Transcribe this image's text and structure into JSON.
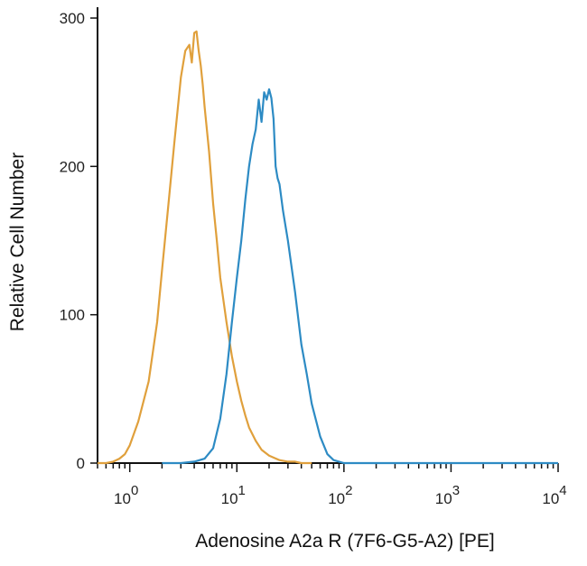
{
  "chart_data": {
    "type": "line",
    "title": "",
    "xlabel": "Adenosine A2a R (7F6-G5-A2) [PE]",
    "ylabel": "Relative Cell Number",
    "x_scale": "log",
    "xlim": [
      0.5,
      10000
    ],
    "ylim": [
      0,
      300
    ],
    "x_ticks": [
      {
        "value": 1,
        "base": "10",
        "exp": "0"
      },
      {
        "value": 10,
        "base": "10",
        "exp": "1"
      },
      {
        "value": 100,
        "base": "10",
        "exp": "2"
      },
      {
        "value": 1000,
        "base": "10",
        "exp": "3"
      },
      {
        "value": 10000,
        "base": "10",
        "exp": "4"
      }
    ],
    "y_ticks": [
      {
        "value": 0,
        "label": "0"
      },
      {
        "value": 100,
        "label": "100"
      },
      {
        "value": 200,
        "label": "200"
      },
      {
        "value": 300,
        "label": "300"
      }
    ],
    "grid": false,
    "legend": "none",
    "series": [
      {
        "color": "#e0a03c",
        "x": [
          0.5,
          0.6,
          0.7,
          0.8,
          0.9,
          1.0,
          1.2,
          1.5,
          1.8,
          2.0,
          2.3,
          2.6,
          3.0,
          3.3,
          3.6,
          3.8,
          4.0,
          4.2,
          4.4,
          4.6,
          4.8,
          5.0,
          5.5,
          6.0,
          6.5,
          7.0,
          8.0,
          9.0,
          10,
          11,
          12,
          13,
          15,
          17,
          20,
          25,
          30,
          35,
          40,
          50
        ],
        "y": [
          0,
          0,
          1,
          3,
          6,
          12,
          28,
          55,
          95,
          130,
          175,
          215,
          260,
          278,
          282,
          270,
          290,
          291,
          278,
          268,
          255,
          240,
          210,
          175,
          150,
          125,
          95,
          72,
          55,
          42,
          32,
          24,
          15,
          9,
          5,
          2,
          1,
          1,
          0,
          0
        ]
      },
      {
        "color": "#2d8bc4",
        "x": [
          2.0,
          3.0,
          4.0,
          5.0,
          6.0,
          7.0,
          8.0,
          9.0,
          10,
          11,
          12,
          13,
          14,
          15,
          16,
          17,
          18,
          19,
          20,
          21,
          22,
          23,
          24,
          25,
          27,
          30,
          35,
          40,
          45,
          50,
          60,
          70,
          80,
          90,
          100,
          200,
          1000,
          10000
        ],
        "y": [
          0,
          0,
          1,
          3,
          10,
          30,
          60,
          95,
          125,
          150,
          178,
          200,
          215,
          225,
          245,
          230,
          250,
          245,
          252,
          246,
          232,
          200,
          192,
          188,
          170,
          150,
          115,
          80,
          60,
          40,
          18,
          6,
          2,
          1,
          0,
          0,
          0,
          0
        ]
      }
    ]
  }
}
